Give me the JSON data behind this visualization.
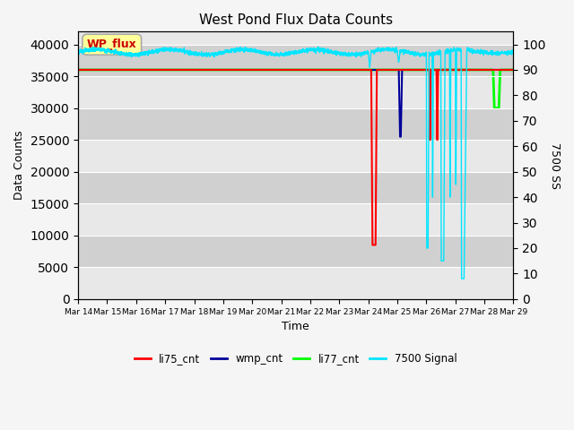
{
  "title": "West Pond Flux Data Counts",
  "xlabel": "Time",
  "ylabel": "Data Counts",
  "ylabel_right": "7500 SS",
  "annotation": "WP_flux",
  "ylim_left": [
    0,
    42000
  ],
  "ylim_right": [
    0,
    105
  ],
  "yticks_left": [
    0,
    5000,
    10000,
    15000,
    20000,
    25000,
    30000,
    35000,
    40000
  ],
  "yticks_right": [
    0,
    10,
    20,
    30,
    40,
    50,
    60,
    70,
    80,
    90,
    100
  ],
  "xtick_labels": [
    "Mar 14",
    "Mar 15",
    "Mar 16",
    "Mar 17",
    "Mar 18",
    "Mar 19",
    "Mar 20",
    "Mar 21",
    "Mar 22",
    "Mar 23",
    "Mar 24",
    "Mar 25",
    "Mar 26",
    "Mar 27",
    "Mar 28",
    "Mar 29"
  ],
  "li77_cnt_value": 36000,
  "li77_color": "#00ff00",
  "li75_color": "#ff0000",
  "wmp_color": "#000099",
  "signal_color": "#00e5ff",
  "bg_color_light": "#e8e8e8",
  "bg_color_dark": "#d0d0d0",
  "fig_facecolor": "#f5f5f5",
  "legend_entries": [
    "li75_cnt",
    "wmp_cnt",
    "li77_cnt",
    "7500 Signal"
  ],
  "annotation_facecolor": "#ffff99",
  "annotation_edgecolor": "#aaaaaa",
  "annotation_textcolor": "#cc0000"
}
